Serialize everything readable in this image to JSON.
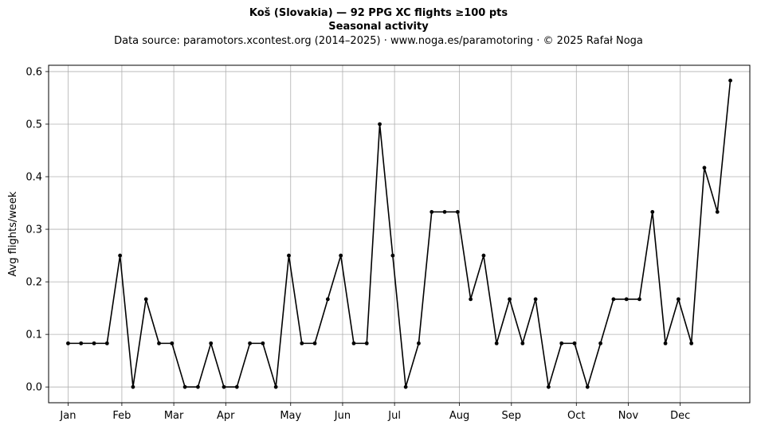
{
  "chart_data": {
    "type": "line",
    "title": "Koš (Slovakia)  —  92 PPG XC flights ≥100 pts",
    "subtitle": "Seasonal activity",
    "source": "Data source: paramotors.xcontest.org (2014–2025)  ·  www.noga.es/paramotoring  ·  © 2025 Rafał Noga",
    "xlabel": "",
    "ylabel": "Avg flights/week",
    "xlim": [
      -1.5,
      52.5
    ],
    "ylim": [
      -0.03,
      0.612
    ],
    "grid": true,
    "x_ticks": [
      {
        "label": "Jan",
        "week": 0
      },
      {
        "label": "Feb",
        "week": 4.14
      },
      {
        "label": "Mar",
        "week": 8.14
      },
      {
        "label": "Apr",
        "week": 12.14
      },
      {
        "label": "May",
        "week": 17.14
      },
      {
        "label": "Jun",
        "week": 21.14
      },
      {
        "label": "Jul",
        "week": 25.14
      },
      {
        "label": "Aug",
        "week": 30.14
      },
      {
        "label": "Sep",
        "week": 34.14
      },
      {
        "label": "Oct",
        "week": 39.14
      },
      {
        "label": "Nov",
        "week": 43.14
      },
      {
        "label": "Dec",
        "week": 47.14
      }
    ],
    "y_ticks": [
      0.0,
      0.1,
      0.2,
      0.3,
      0.4,
      0.5,
      0.6
    ],
    "y_tick_labels": [
      "0.0",
      "0.1",
      "0.2",
      "0.3",
      "0.4",
      "0.5",
      "0.6"
    ],
    "series": [
      {
        "color": "#000000",
        "x": [
          0,
          1,
          2,
          3,
          4,
          5,
          6,
          7,
          8,
          9,
          10,
          11,
          12,
          13,
          14,
          15,
          16,
          17,
          18,
          19,
          20,
          21,
          22,
          23,
          24,
          25,
          26,
          27,
          28,
          29,
          30,
          31,
          32,
          33,
          34,
          35,
          36,
          37,
          38,
          39,
          40,
          41,
          42,
          43,
          44,
          45,
          46,
          47,
          48,
          49,
          50,
          51
        ],
        "values": [
          0.083,
          0.083,
          0.083,
          0.083,
          0.25,
          0,
          0.167,
          0.083,
          0.083,
          0,
          0,
          0.083,
          0,
          0,
          0.083,
          0.083,
          0,
          0.25,
          0.083,
          0.083,
          0.167,
          0.25,
          0.083,
          0.083,
          0.5,
          0.25,
          0,
          0.083,
          0.333,
          0.333,
          0.333,
          0.167,
          0.25,
          0.083,
          0.167,
          0.083,
          0.167,
          0,
          0.083,
          0.083,
          0,
          0.083,
          0.167,
          0.167,
          0.167,
          0.333,
          0.083,
          0.167,
          0.083,
          0.417,
          0.333,
          0.583
        ]
      }
    ]
  }
}
